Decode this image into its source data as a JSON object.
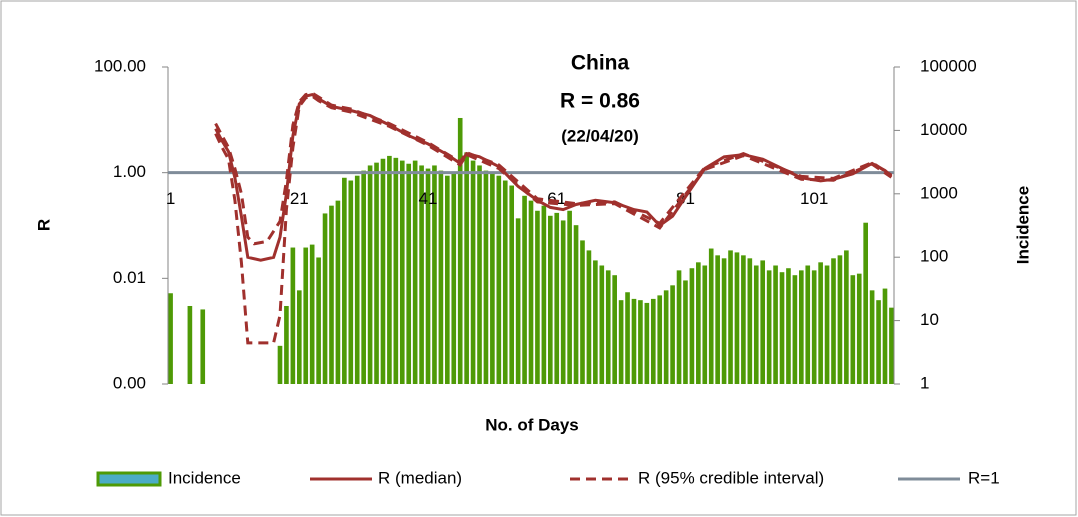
{
  "chart_data": {
    "type": "bar-line",
    "title": "China",
    "annotations": [
      "R = 0.86",
      "(22/04/20)"
    ],
    "xlabel": "No. of Days",
    "ylabel": "R",
    "y2label": "Incidence",
    "log_y": true,
    "log_y2": true,
    "grid": false,
    "legend": "bottom",
    "xlim": [
      0.6,
      113.4
    ],
    "xticks": [
      1,
      21,
      41,
      61,
      81,
      101
    ],
    "ylim": [
      0.0001,
      100
    ],
    "yticks": [
      {
        "value": 0.0001,
        "label": "0.00"
      },
      {
        "value": 0.01,
        "label": "0.01"
      },
      {
        "value": 1,
        "label": "1.00"
      },
      {
        "value": 100,
        "label": "100.00"
      }
    ],
    "y2lim": [
      1,
      100000
    ],
    "y2ticks": [
      1,
      10,
      100,
      1000,
      10000,
      100000
    ],
    "bars": {
      "name": "Incidence",
      "color": "#4e9a06",
      "legend_color": "#4bacc6",
      "axis": "y2",
      "x": [
        1,
        2,
        3,
        4,
        5,
        6,
        7,
        8,
        9,
        10,
        11,
        12,
        13,
        14,
        15,
        16,
        17,
        18,
        19,
        20,
        21,
        22,
        23,
        24,
        25,
        26,
        27,
        28,
        29,
        30,
        31,
        32,
        33,
        34,
        35,
        36,
        37,
        38,
        39,
        40,
        41,
        42,
        43,
        44,
        45,
        46,
        47,
        48,
        49,
        50,
        51,
        52,
        53,
        54,
        55,
        56,
        57,
        58,
        59,
        60,
        61,
        62,
        63,
        64,
        65,
        66,
        67,
        68,
        69,
        70,
        71,
        72,
        73,
        74,
        75,
        76,
        77,
        78,
        79,
        80,
        81,
        82,
        83,
        84,
        85,
        86,
        87,
        88,
        89,
        90,
        91,
        92,
        93,
        94,
        95,
        96,
        97,
        98,
        99,
        100,
        101,
        102,
        103,
        104,
        105,
        106,
        107,
        108,
        109,
        110,
        111,
        112,
        113
      ],
      "values": [
        27,
        null,
        null,
        17,
        null,
        15,
        null,
        null,
        null,
        null,
        null,
        null,
        null,
        null,
        null,
        null,
        null,
        4,
        17,
        142,
        30,
        142,
        158,
        99,
        490,
        650,
        780,
        1790,
        1620,
        1930,
        2320,
        2800,
        3100,
        3570,
        3960,
        3690,
        3340,
        2980,
        3340,
        2800,
        2500,
        2800,
        2320,
        1930,
        2160,
        15700,
        4500,
        3340,
        2800,
        2320,
        2160,
        1930,
        1620,
        1350,
        410,
        930,
        780,
        540,
        650,
        450,
        500,
        380,
        540,
        320,
        184,
        128,
        89,
        74,
        62,
        52,
        21,
        28,
        22,
        21,
        19,
        22,
        25,
        30,
        36,
        62,
        43,
        67,
        83,
        74,
        137,
        107,
        96,
        128,
        119,
        107,
        96,
        74,
        89,
        62,
        74,
        58,
        67,
        52,
        62,
        74,
        62,
        83,
        74,
        96,
        107,
        128,
        52,
        55,
        350,
        30,
        21,
        32,
        16
      ]
    },
    "series": [
      {
        "name": "R (median)",
        "color": "#a0302d",
        "dash": false,
        "x": [
          8,
          9,
          10,
          11,
          12,
          13,
          15,
          17,
          18,
          19,
          20,
          21,
          22,
          23,
          24,
          26,
          29,
          32,
          35,
          38,
          41,
          44,
          46,
          47,
          49,
          52,
          55,
          58,
          60,
          62,
          64,
          67,
          70,
          73,
          75,
          77,
          79,
          81,
          84,
          87,
          90,
          93,
          96,
          99,
          102,
          104,
          107,
          110,
          112,
          113
        ],
        "values": [
          6.8,
          4,
          2.5,
          0.8,
          0.15,
          0.025,
          0.022,
          0.025,
          0.06,
          0.4,
          5,
          20,
          28,
          30,
          25,
          18,
          15,
          12,
          8,
          5,
          3.5,
          2.2,
          1.5,
          2.3,
          2,
          1.3,
          0.55,
          0.3,
          0.22,
          0.2,
          0.25,
          0.3,
          0.27,
          0.2,
          0.18,
          0.1,
          0.15,
          0.35,
          1.2,
          2,
          2.2,
          1.8,
          1.2,
          0.8,
          0.7,
          0.75,
          0.95,
          1.5,
          1.1,
          0.86
        ]
      },
      {
        "name": "R (95% credible interval)",
        "color": "#a0302d",
        "dash": true,
        "x": [
          8,
          9,
          10,
          11,
          12,
          13,
          14,
          16,
          18,
          19,
          20,
          21,
          22,
          23,
          24,
          26,
          29,
          35,
          41,
          46,
          47,
          52,
          58,
          64,
          70,
          77,
          84,
          90,
          99,
          104,
          110,
          113
        ],
        "values": [
          8.5,
          5,
          3,
          1.2,
          0.4,
          0.06,
          0.045,
          0.05,
          0.12,
          0.7,
          8,
          22,
          30,
          32,
          27,
          19,
          16,
          8.5,
          3.7,
          1.6,
          2.4,
          1.4,
          0.32,
          0.26,
          0.28,
          0.11,
          1.25,
          2.3,
          0.85,
          0.78,
          1.55,
          0.9
        ]
      },
      {
        "name": "R (95% credible interval)",
        "color": "#a0302d",
        "dash": true,
        "in_legend": false,
        "x": [
          8,
          9,
          10,
          11,
          12,
          13,
          17,
          18,
          19,
          20,
          21,
          22,
          23,
          24,
          26,
          29,
          35,
          41,
          46,
          47,
          52,
          58,
          64,
          70,
          77,
          84,
          90,
          99,
          104,
          110,
          113
        ],
        "values": [
          5.5,
          3,
          1.8,
          0.3,
          0.02,
          0.0006,
          0.0006,
          0.002,
          0.2,
          3,
          18,
          26,
          28,
          23,
          17,
          14,
          7.5,
          3.3,
          1.4,
          2.2,
          1.2,
          0.28,
          0.24,
          0.26,
          0.09,
          1.15,
          2.1,
          0.75,
          0.72,
          1.45,
          0.82
        ]
      }
    ],
    "reference_line": {
      "name": "R=1",
      "value": 1,
      "color": "#7f8c99"
    }
  }
}
